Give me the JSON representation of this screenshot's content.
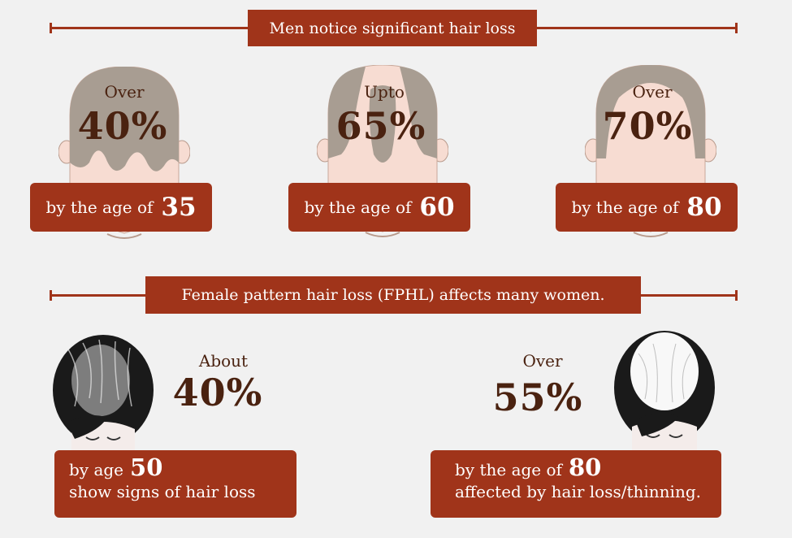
{
  "men": {
    "heading": "Men notice significant hair loss",
    "stats": [
      {
        "prefix": "Over",
        "percent": "40%",
        "age_label": "by the age of",
        "age": "35"
      },
      {
        "prefix": "Upto",
        "percent": "65%",
        "age_label": "by the age of",
        "age": "60"
      },
      {
        "prefix": "Over",
        "percent": "70%",
        "age_label": "by the age of",
        "age": "80"
      }
    ]
  },
  "women": {
    "heading": "Female pattern hair loss (FPHL) affects many women.",
    "stats": [
      {
        "prefix": "About",
        "percent": "40%",
        "age_label": "by age",
        "age": "50",
        "detail": "show signs of hair loss"
      },
      {
        "prefix": "Over",
        "percent": "55%",
        "age_label": "by the age of",
        "age": "80",
        "detail": "affected by hair loss/thinning."
      }
    ]
  },
  "colors": {
    "accent": "#a0341a",
    "text_dark": "#4a2210",
    "background": "#f1f1f1",
    "hair_gray": "#a89d92",
    "skin": "#f7dcd2"
  }
}
